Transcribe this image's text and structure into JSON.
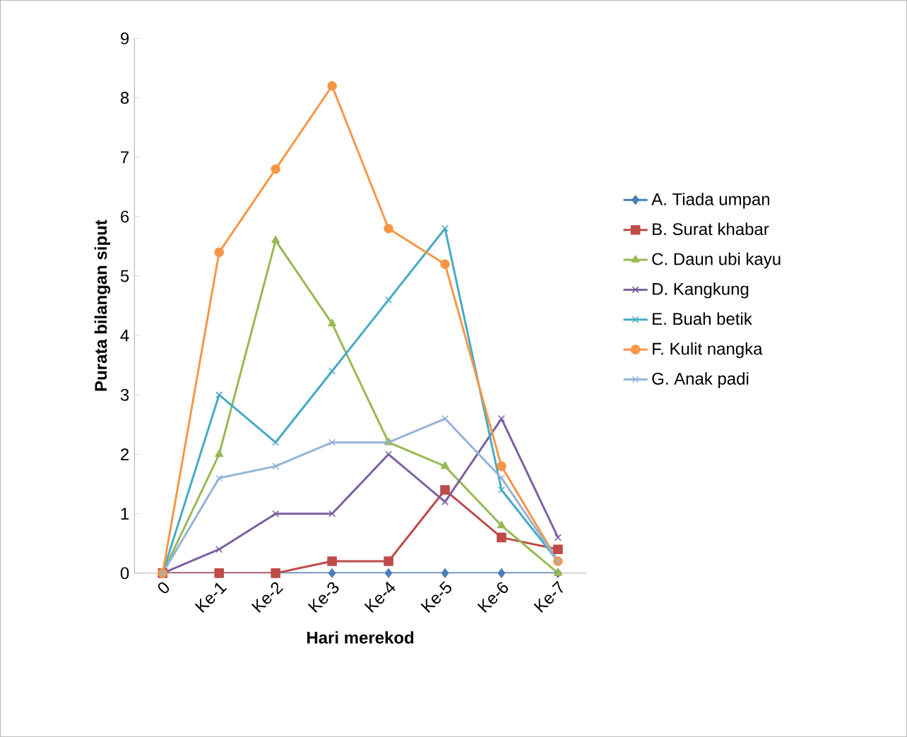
{
  "chart_data": {
    "type": "line",
    "xlabel": "Hari merekod",
    "ylabel": "Purata bilangan siput",
    "categories": [
      "0",
      "Ke-1",
      "Ke-2",
      "Ke-3",
      "Ke-4",
      "Ke-5",
      "Ke-6",
      "Ke-7"
    ],
    "ylim": [
      0,
      9
    ],
    "yticks": [
      0,
      1,
      2,
      3,
      4,
      5,
      6,
      7,
      8,
      9
    ],
    "grid": false,
    "legend": "right",
    "series": [
      {
        "name": "A. Tiada umpan",
        "color": "#4a7ebb",
        "marker": "diamond",
        "values": [
          0,
          0,
          0,
          0,
          0,
          0,
          0,
          0
        ]
      },
      {
        "name": "B. Surat khabar",
        "color": "#be4b48",
        "marker": "square",
        "values": [
          0,
          0,
          0,
          0.2,
          0.2,
          1.4,
          0.6,
          0.4
        ]
      },
      {
        "name": "C. Daun ubi kayu",
        "color": "#98b954",
        "marker": "triangle",
        "values": [
          0,
          2,
          5.6,
          4.2,
          2.2,
          1.8,
          0.8,
          0
        ]
      },
      {
        "name": "D. Kangkung",
        "color": "#7d60a0",
        "marker": "cross",
        "values": [
          0,
          0.4,
          1,
          1,
          2,
          1.2,
          2.6,
          0.6
        ]
      },
      {
        "name": "E. Buah betik",
        "color": "#46aac5",
        "marker": "cross",
        "values": [
          0,
          3,
          2.2,
          3.4,
          4.6,
          5.8,
          1.4,
          0.2
        ]
      },
      {
        "name": "F. Kulit nangka",
        "color": "#f79646",
        "marker": "circle",
        "values": [
          0,
          5.4,
          6.8,
          8.2,
          5.8,
          5.2,
          1.8,
          0.2
        ]
      },
      {
        "name": "G. Anak padi",
        "color": "#95b3d7",
        "marker": "cross",
        "values": [
          0,
          1.6,
          1.8,
          2.2,
          2.2,
          2.6,
          1.6,
          0.2
        ]
      }
    ]
  }
}
